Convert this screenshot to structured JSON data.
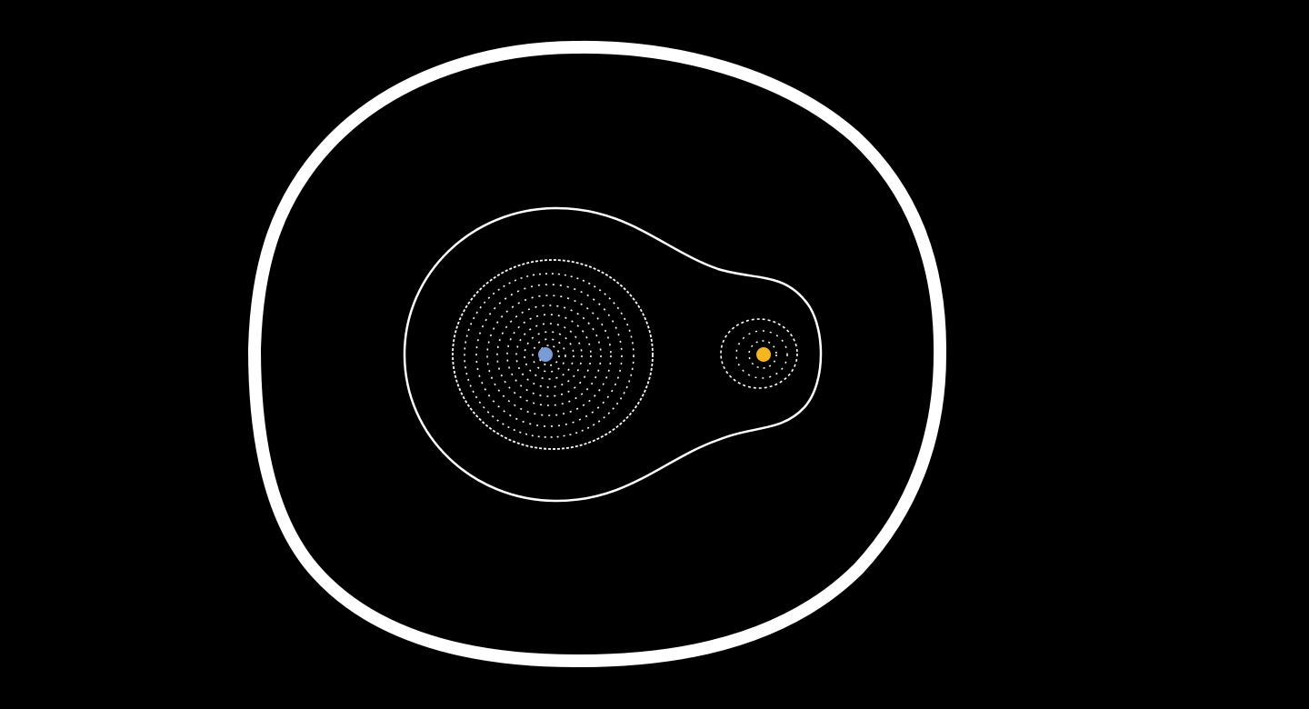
{
  "scene": {
    "background": "#000000",
    "line_color": "#ffffff",
    "bodies": [
      {
        "name": "primary",
        "color": "#7b9bd6"
      },
      {
        "name": "secondary",
        "color": "#f5b51c"
      }
    ],
    "contours": [
      {
        "name": "outer-boundary",
        "style": "solid",
        "weight": "heavy"
      },
      {
        "name": "common-envelope",
        "style": "solid",
        "weight": "thin"
      },
      {
        "name": "primary-lobe",
        "style": "dotted",
        "weight": "thin"
      },
      {
        "name": "secondary-lobe",
        "style": "dotted",
        "weight": "thin"
      }
    ]
  }
}
